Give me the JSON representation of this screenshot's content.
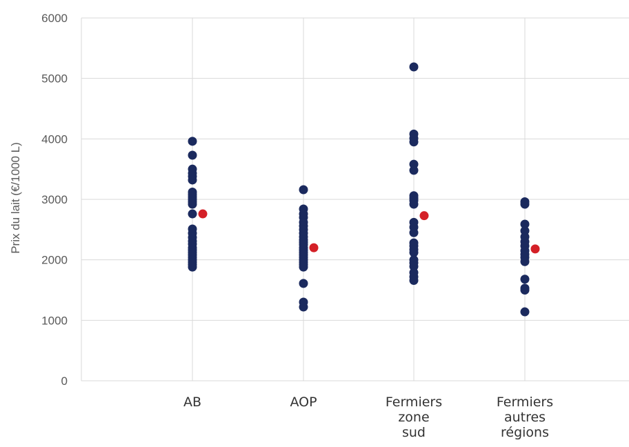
{
  "chart_data": {
    "type": "scatter",
    "title": "",
    "xlabel": "",
    "ylabel": "Prix du lait (€/1000 L)",
    "ylim": [
      0,
      6000
    ],
    "yticks": [
      0,
      1000,
      2000,
      3000,
      4000,
      5000,
      6000
    ],
    "grid": true,
    "categories": [
      {
        "lines": [
          "AB"
        ]
      },
      {
        "lines": [
          "AOP"
        ]
      },
      {
        "lines": [
          "Fermiers",
          "zone",
          "sud"
        ]
      },
      {
        "lines": [
          "Fermiers",
          "autres",
          "régions"
        ]
      }
    ],
    "series": [
      {
        "color": "#1b2a5e",
        "points": [
          {
            "cat": 0,
            "values": [
              3960,
              3730,
              3500,
              3430,
              3380,
              3320,
              3120,
              3080,
              3040,
              3000,
              2960,
              2920,
              2760,
              2510,
              2440,
              2370,
              2310,
              2260,
              2200,
              2160,
              2120,
              2080,
              2040,
              2000,
              1960,
              1920,
              1880
            ]
          },
          {
            "cat": 1,
            "values": [
              3160,
              2840,
              2760,
              2700,
              2620,
              2560,
              2500,
              2440,
              2380,
              2330,
              2290,
              2250,
              2200,
              2160,
              2120,
              2080,
              2040,
              2000,
              1960,
              1920,
              1880,
              1610,
              1300,
              1220
            ]
          },
          {
            "cat": 2,
            "values": [
              5190,
              4080,
              4010,
              3950,
              3580,
              3480,
              3060,
              3020,
              2980,
              2920,
              2620,
              2540,
              2450,
              2280,
              2230,
              2170,
              2120,
              2000,
              1950,
              1890,
              1790,
              1720,
              1660
            ]
          },
          {
            "cat": 3,
            "values": [
              2960,
              2920,
              2590,
              2480,
              2380,
              2300,
              2230,
              2150,
              2090,
              2040,
              1970,
              1680,
              1530,
              1500,
              1140
            ]
          }
        ]
      },
      {
        "color": "#d42027",
        "points": [
          {
            "cat": 0,
            "values": [
              2760
            ]
          },
          {
            "cat": 1,
            "values": [
              2200
            ]
          },
          {
            "cat": 2,
            "values": [
              2730
            ]
          },
          {
            "cat": 3,
            "values": [
              2180
            ]
          }
        ]
      }
    ]
  }
}
